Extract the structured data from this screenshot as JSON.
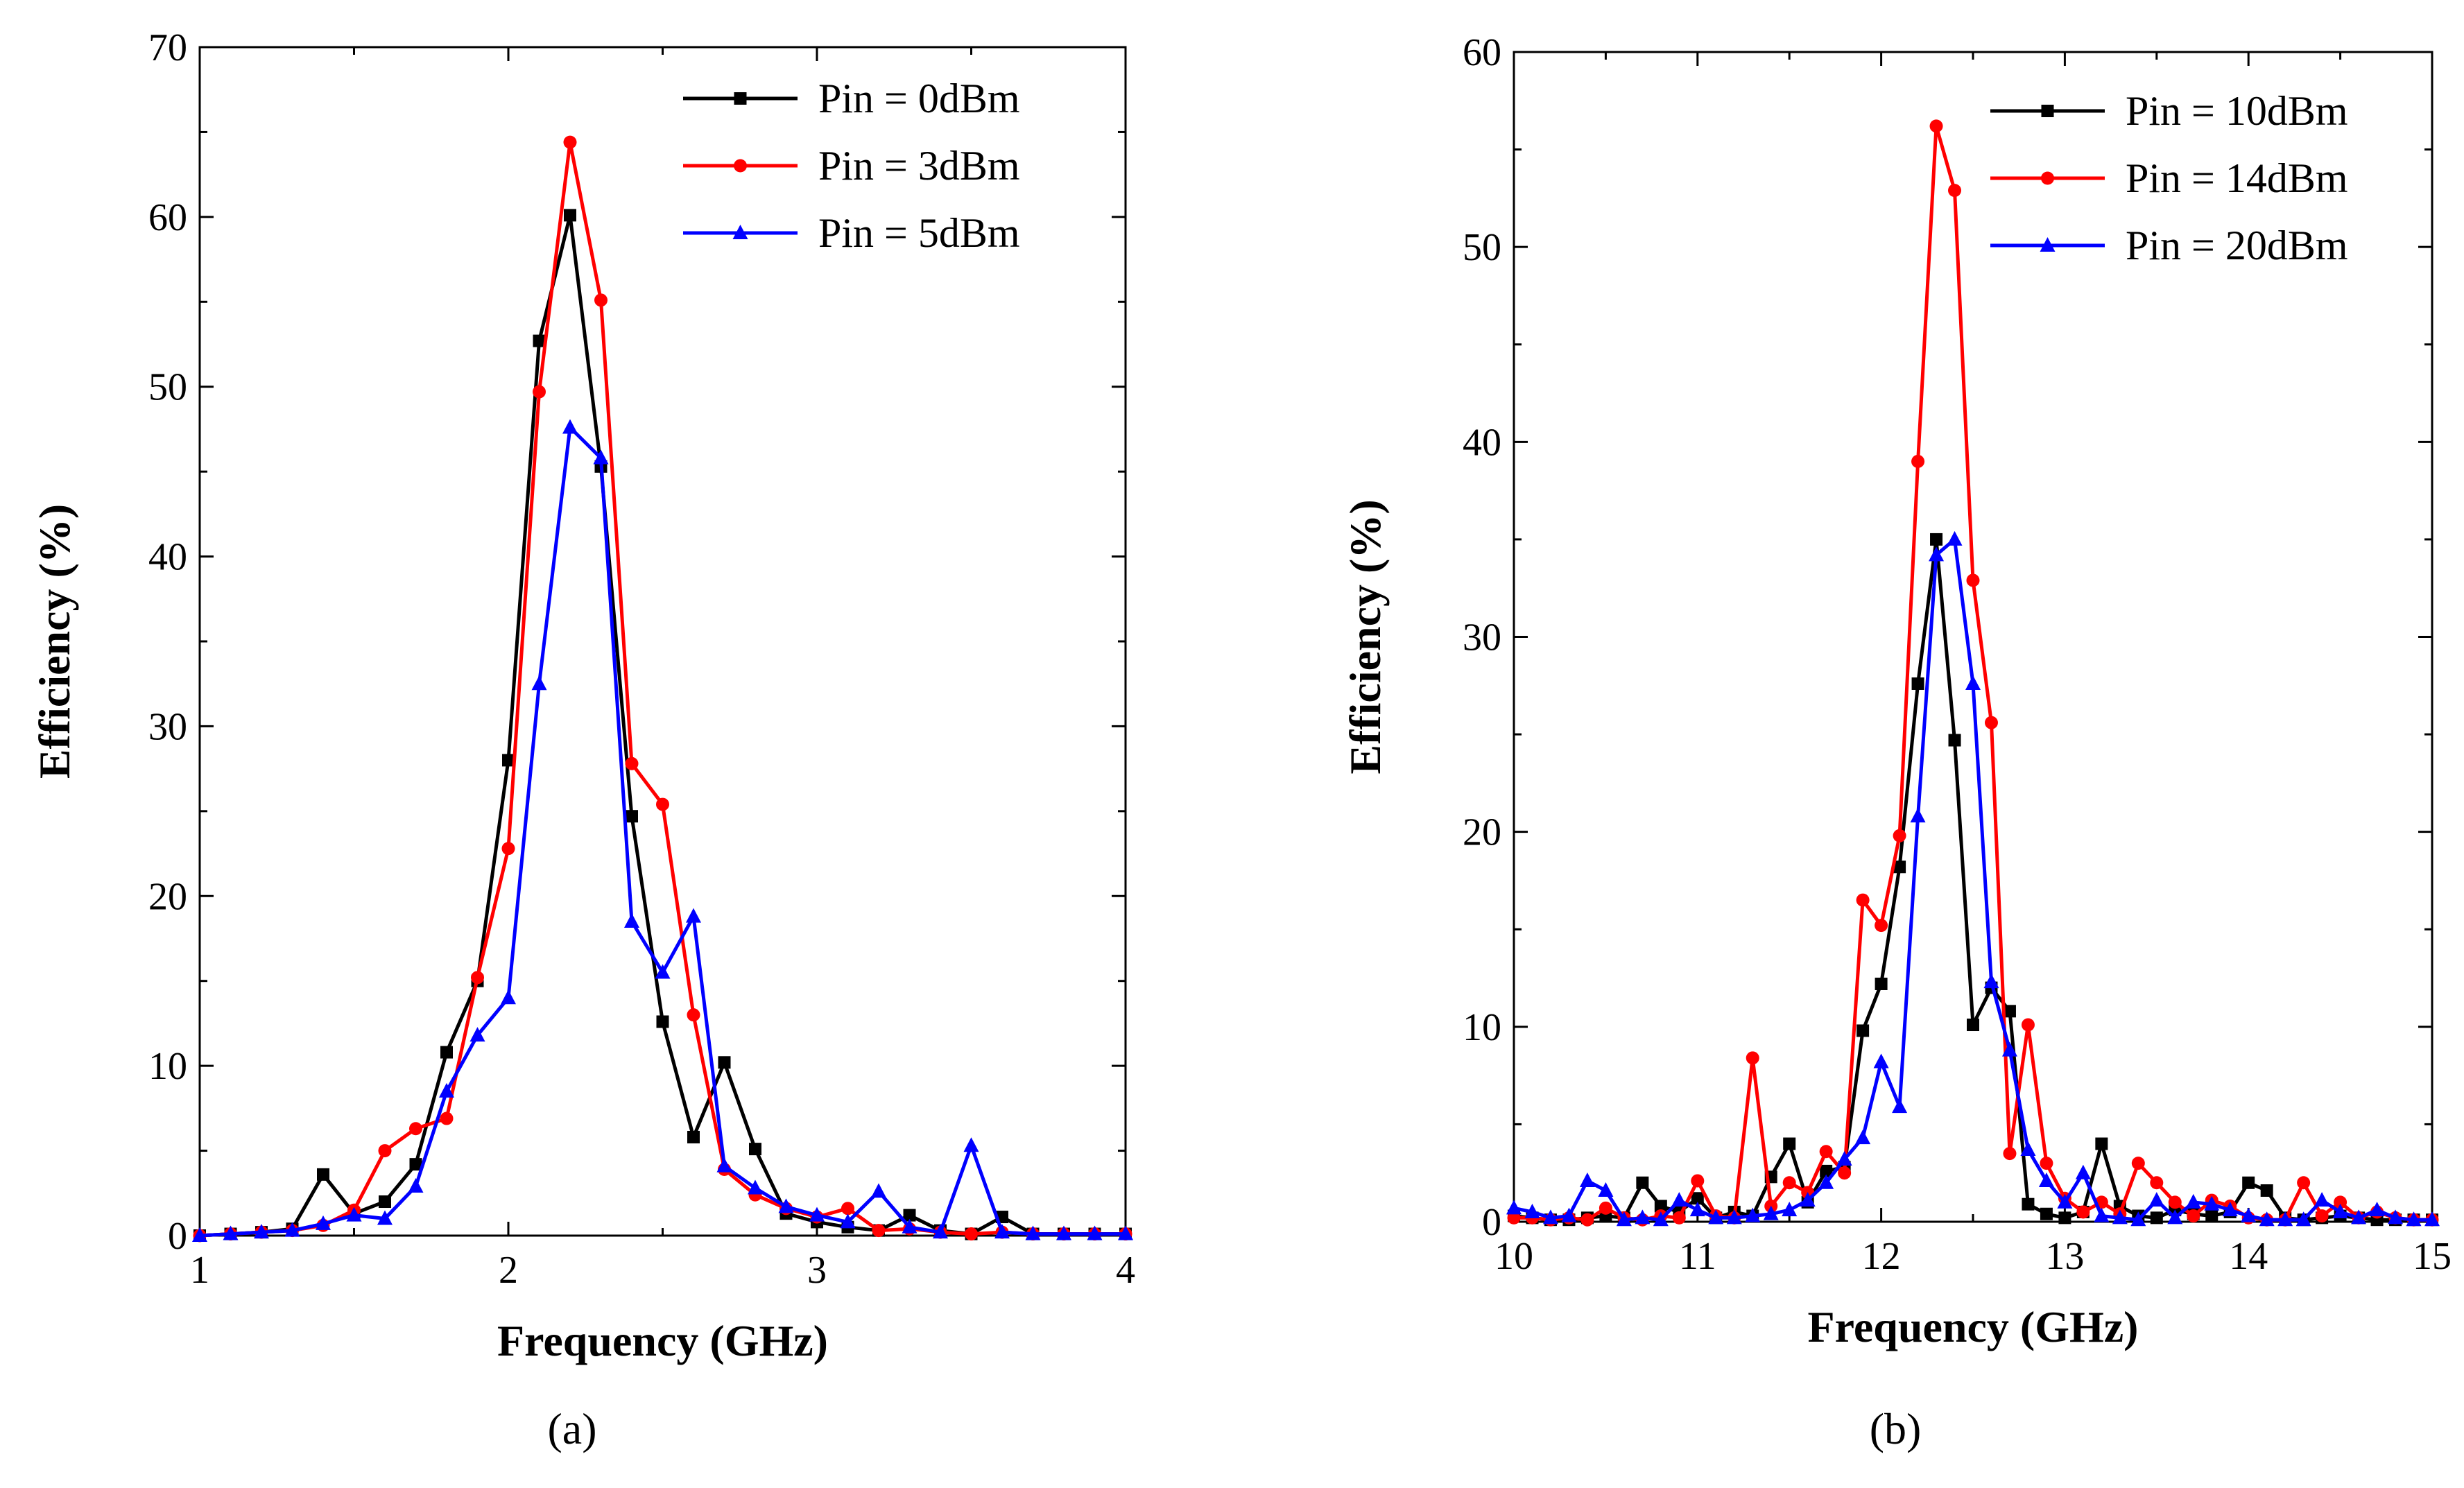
{
  "chart_data": [
    {
      "type": "line",
      "panel_label": "(a)",
      "xlabel": "Frequency (GHz)",
      "ylabel": "Efficiency (%)",
      "xlim": [
        1,
        4
      ],
      "ylim": [
        0,
        70
      ],
      "xticks": [
        1,
        2,
        3,
        4
      ],
      "yticks": [
        0,
        10,
        20,
        30,
        40,
        50,
        60,
        70
      ],
      "legend_position": "top-right",
      "x": [
        1.0,
        1.1,
        1.2,
        1.3,
        1.4,
        1.5,
        1.6,
        1.7,
        1.8,
        1.9,
        2.0,
        2.1,
        2.2,
        2.3,
        2.4,
        2.5,
        2.6,
        2.7,
        2.8,
        2.9,
        3.0,
        3.1,
        3.2,
        3.3,
        3.4,
        3.5,
        3.6,
        3.7,
        3.8,
        3.9,
        4.0
      ],
      "series": [
        {
          "name": "Pin = 0dBm",
          "color": "#000000",
          "marker": "square",
          "values": [
            0,
            0.1,
            0.2,
            0.4,
            3.6,
            1.3,
            2.0,
            4.2,
            10.8,
            15.0,
            28.0,
            52.7,
            60.1,
            45.3,
            24.7,
            12.6,
            5.8,
            10.2,
            5.1,
            1.3,
            0.8,
            0.5,
            0.3,
            1.2,
            0.3,
            0.1,
            1.1,
            0.1,
            0.1,
            0.1,
            0.1
          ]
        },
        {
          "name": "Pin = 3dBm",
          "color": "#ff0000",
          "marker": "circle",
          "values": [
            0,
            0.1,
            0.2,
            0.3,
            0.6,
            1.5,
            5.0,
            6.3,
            6.9,
            15.2,
            22.8,
            49.7,
            64.4,
            55.1,
            27.8,
            25.4,
            13.0,
            3.9,
            2.4,
            1.6,
            1.1,
            1.6,
            0.3,
            0.4,
            0.2,
            0.1,
            0.2,
            0.1,
            0.1,
            0.1,
            0.1
          ]
        },
        {
          "name": "Pin = 5dBm",
          "color": "#0000ff",
          "marker": "triangle",
          "values": [
            0,
            0.1,
            0.2,
            0.3,
            0.7,
            1.2,
            1.0,
            2.9,
            8.5,
            11.8,
            14.0,
            32.5,
            47.6,
            45.8,
            18.5,
            15.5,
            18.8,
            4.1,
            2.8,
            1.7,
            1.2,
            0.8,
            2.6,
            0.5,
            0.2,
            5.3,
            0.2,
            0.1,
            0.1,
            0.1,
            0.1
          ]
        }
      ]
    },
    {
      "type": "line",
      "panel_label": "(b)",
      "xlabel": "Frequency (GHz)",
      "ylabel": "Efficiency (%)",
      "xlim": [
        10,
        15
      ],
      "ylim": [
        0,
        60
      ],
      "xticks": [
        10,
        11,
        12,
        13,
        14,
        15
      ],
      "yticks": [
        0,
        10,
        20,
        30,
        40,
        50,
        60
      ],
      "legend_position": "top-right",
      "x": [
        10.0,
        10.1,
        10.2,
        10.3,
        10.4,
        10.5,
        10.6,
        10.7,
        10.8,
        10.9,
        11.0,
        11.1,
        11.2,
        11.3,
        11.4,
        11.5,
        11.6,
        11.7,
        11.8,
        11.9,
        12.0,
        12.1,
        12.2,
        12.3,
        12.4,
        12.5,
        12.6,
        12.7,
        12.8,
        12.9,
        13.0,
        13.1,
        13.2,
        13.3,
        13.4,
        13.5,
        13.6,
        13.7,
        13.8,
        13.9,
        14.0,
        14.1,
        14.2,
        14.3,
        14.4,
        14.5,
        14.6,
        14.7,
        14.8,
        14.9,
        15.0
      ],
      "series": [
        {
          "name": "Pin = 10dBm",
          "color": "#000000",
          "marker": "square",
          "values": [
            0.3,
            0.2,
            0.1,
            0.1,
            0.2,
            0.3,
            0.2,
            2.0,
            0.8,
            0.5,
            1.2,
            0.2,
            0.5,
            0.3,
            2.3,
            4.0,
            1.0,
            2.6,
            2.8,
            9.8,
            12.2,
            18.2,
            27.6,
            35.0,
            24.7,
            10.1,
            12.0,
            10.8,
            0.9,
            0.4,
            0.2,
            0.5,
            4.0,
            0.8,
            0.3,
            0.2,
            0.6,
            0.4,
            0.3,
            0.5,
            2.0,
            1.6,
            0.2,
            0.1,
            0.2,
            0.3,
            0.2,
            0.1,
            0.1,
            0.1,
            0.1
          ]
        },
        {
          "name": "Pin = 14dBm",
          "color": "#ff0000",
          "marker": "circle",
          "values": [
            0.2,
            0.2,
            0.1,
            0.2,
            0.1,
            0.7,
            0.2,
            0.1,
            0.3,
            0.2,
            2.1,
            0.3,
            0.2,
            8.4,
            0.8,
            2.0,
            1.5,
            3.6,
            2.5,
            16.5,
            15.2,
            19.8,
            39.0,
            56.2,
            52.9,
            32.9,
            25.6,
            3.5,
            10.1,
            3.0,
            1.2,
            0.5,
            1.0,
            0.4,
            3.0,
            2.0,
            1.0,
            0.3,
            1.1,
            0.8,
            0.2,
            0.1,
            0.1,
            2.0,
            0.3,
            1.0,
            0.2,
            0.5,
            0.2,
            0.1,
            0.1
          ]
        },
        {
          "name": "Pin = 20dBm",
          "color": "#0000ff",
          "marker": "triangle",
          "values": [
            0.7,
            0.5,
            0.2,
            0.3,
            2.1,
            1.6,
            0.1,
            0.2,
            0.1,
            1.1,
            0.6,
            0.2,
            0.2,
            0.3,
            0.4,
            0.6,
            1.1,
            2.0,
            3.2,
            4.3,
            8.2,
            5.9,
            20.8,
            34.2,
            35.0,
            27.6,
            12.3,
            8.8,
            3.7,
            2.1,
            1.0,
            2.5,
            0.3,
            0.2,
            0.1,
            1.1,
            0.2,
            1.0,
            0.9,
            0.6,
            0.3,
            0.1,
            0.1,
            0.1,
            1.1,
            0.5,
            0.2,
            0.6,
            0.2,
            0.1,
            0.1
          ]
        }
      ]
    }
  ]
}
